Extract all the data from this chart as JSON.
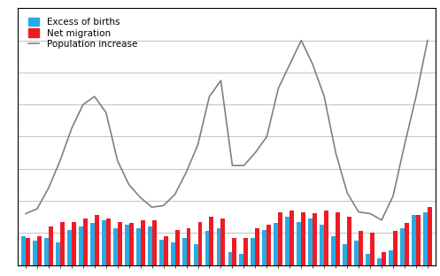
{
  "excess_of_births": [
    1800,
    1500,
    1700,
    1400,
    2200,
    2400,
    2600,
    2800,
    2300,
    2500,
    2300,
    2400,
    1600,
    1400,
    1700,
    1300,
    2100,
    2300,
    800,
    700,
    1700,
    2200,
    2600,
    3000,
    2700,
    2900,
    2500,
    1800,
    1300,
    1500,
    700,
    400,
    900,
    2300,
    3100,
    3300
  ],
  "net_migration": [
    1700,
    1800,
    2400,
    2700,
    2700,
    2900,
    3100,
    2900,
    2700,
    2600,
    2800,
    2800,
    1800,
    2200,
    2300,
    2700,
    3000,
    2900,
    1700,
    1700,
    2300,
    2500,
    3300,
    3400,
    3300,
    3200,
    3400,
    3300,
    3000,
    2100,
    2000,
    800,
    2100,
    2600,
    3100,
    3600
  ],
  "population_increase": [
    3200,
    3500,
    4800,
    6500,
    8500,
    10000,
    10500,
    9500,
    6500,
    5000,
    4200,
    3600,
    3700,
    4400,
    5800,
    7500,
    10500,
    11500,
    6200,
    6200,
    7000,
    8000,
    11000,
    12500,
    14000,
    12500,
    10500,
    7000,
    4500,
    3300,
    3200,
    2800,
    4300,
    7500,
    10500,
    14000
  ],
  "bar_color_births": "#29ABE2",
  "bar_color_migration": "#ED1C24",
  "line_color": "#808080",
  "background_color": "#FFFFFF",
  "n_months": 36,
  "legend_births": "Excess of births",
  "legend_migration": "Net migration",
  "legend_line": "Population increase",
  "bar_width": 0.38
}
